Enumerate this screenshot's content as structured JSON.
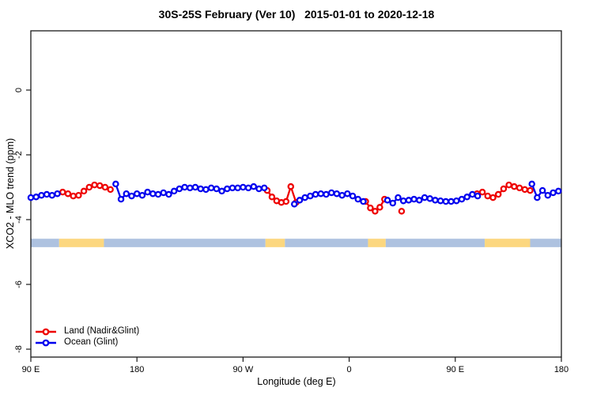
{
  "title": "30S-25S February (Ver 10)   2015-01-01 to 2020-12-18",
  "legend": {
    "land_label": "Land (Nadir&Glint)",
    "ocean_label": "Ocean (Glint)"
  },
  "colors": {
    "land": "#ee0000",
    "ocean": "#0000ee",
    "band_ocean": "#aec2e0",
    "band_land": "#fcd77f",
    "axis": "#1a1a1a"
  },
  "chart_data": {
    "type": "line",
    "title": "30S-25S February (Ver 10)   2015-01-01 to 2020-12-18",
    "xlabel": "Longitude (deg E)",
    "ylabel": "XCO2 - MLO trend (ppm)",
    "x_axis": {
      "note": "longitude axis starts at 90E and wraps eastward to 180; stored as continuous degrees 90..540",
      "domain_deg": [
        90,
        540
      ],
      "ticks": [
        {
          "deg": 90,
          "label": "90 E"
        },
        {
          "deg": 180,
          "label": "180"
        },
        {
          "deg": 270,
          "label": "90 W"
        },
        {
          "deg": 360,
          "label": "0"
        },
        {
          "deg": 450,
          "label": "90 E"
        },
        {
          "deg": 540,
          "label": "180"
        }
      ]
    },
    "y_axis": {
      "ylim": [
        -8.25,
        1.83
      ],
      "ticks": [
        {
          "v": 0,
          "label": "0"
        },
        {
          "v": -2,
          "label": "-2"
        },
        {
          "v": -4,
          "label": "-4"
        },
        {
          "v": -6,
          "label": "-6"
        },
        {
          "v": -8,
          "label": "-8"
        }
      ]
    },
    "grid": false,
    "legend_position": "bottom-left-inside",
    "surface_band": {
      "value_top": -4.59,
      "value_bottom": -4.85,
      "segments": [
        {
          "surface": "ocean",
          "from": 90,
          "to": 114
        },
        {
          "surface": "land",
          "from": 114,
          "to": 152
        },
        {
          "surface": "ocean",
          "from": 152,
          "to": 289
        },
        {
          "surface": "land",
          "from": 289,
          "to": 305.5
        },
        {
          "surface": "ocean",
          "from": 305.5,
          "to": 376
        },
        {
          "surface": "land",
          "from": 376,
          "to": 391
        },
        {
          "surface": "ocean",
          "from": 391,
          "to": 475
        },
        {
          "surface": "land",
          "from": 475,
          "to": 513.5
        },
        {
          "surface": "ocean",
          "from": 513.5,
          "to": 540
        }
      ]
    },
    "series": [
      {
        "name": "Land (Nadir&Glint)",
        "color": "#ee0000",
        "runs": [
          [
            [
              117,
              -3.15
            ],
            [
              121.5,
              -3.2
            ],
            [
              126,
              -3.27
            ],
            [
              130.5,
              -3.25
            ],
            [
              135,
              -3.12
            ],
            [
              139.5,
              -3.0
            ],
            [
              144,
              -2.93
            ],
            [
              148.5,
              -2.95
            ],
            [
              153,
              -3.0
            ],
            [
              157.5,
              -3.07
            ]
          ],
          [
            [
              290.5,
              -3.1
            ],
            [
              294.5,
              -3.3
            ],
            [
              298.5,
              -3.42
            ],
            [
              302.5,
              -3.47
            ],
            [
              306.5,
              -3.44
            ],
            [
              310.5,
              -2.98
            ],
            [
              315,
              -3.47
            ]
          ],
          [
            [
              374,
              -3.44
            ],
            [
              378,
              -3.64
            ],
            [
              382,
              -3.74
            ],
            [
              386,
              -3.62
            ],
            [
              390,
              -3.37
            ]
          ],
          [
            [
              404.5,
              -3.74
            ]
          ],
          [
            [
              468.5,
              -3.2
            ],
            [
              473,
              -3.15
            ],
            [
              477.5,
              -3.27
            ],
            [
              482,
              -3.32
            ],
            [
              486.5,
              -3.22
            ],
            [
              491,
              -3.05
            ],
            [
              495.5,
              -2.93
            ],
            [
              500,
              -2.98
            ],
            [
              504.5,
              -3.02
            ],
            [
              509,
              -3.07
            ],
            [
              513.5,
              -3.1
            ]
          ]
        ]
      },
      {
        "name": "Ocean (Glint)",
        "color": "#0000ee",
        "runs": [
          [
            [
              90,
              -3.32
            ],
            [
              94.5,
              -3.3
            ],
            [
              99,
              -3.25
            ],
            [
              103.5,
              -3.22
            ],
            [
              108,
              -3.25
            ],
            [
              112.5,
              -3.2
            ]
          ],
          [
            [
              162,
              -2.9
            ],
            [
              166.5,
              -3.37
            ],
            [
              171,
              -3.2
            ],
            [
              175.5,
              -3.27
            ],
            [
              180,
              -3.2
            ],
            [
              184.5,
              -3.25
            ],
            [
              189,
              -3.15
            ],
            [
              193.5,
              -3.2
            ],
            [
              198,
              -3.22
            ],
            [
              202.5,
              -3.17
            ],
            [
              207,
              -3.22
            ],
            [
              211.5,
              -3.12
            ],
            [
              216,
              -3.05
            ],
            [
              220.5,
              -3.0
            ],
            [
              225,
              -3.02
            ],
            [
              229.5,
              -3.0
            ],
            [
              234,
              -3.05
            ],
            [
              238.5,
              -3.07
            ],
            [
              243,
              -3.02
            ],
            [
              247.5,
              -3.05
            ],
            [
              252,
              -3.12
            ],
            [
              256.5,
              -3.05
            ],
            [
              261,
              -3.02
            ],
            [
              265.5,
              -3.02
            ],
            [
              270,
              -3.0
            ],
            [
              274.5,
              -3.02
            ],
            [
              279,
              -2.98
            ],
            [
              283.5,
              -3.05
            ],
            [
              288,
              -3.02
            ]
          ],
          [
            [
              313.5,
              -3.52
            ],
            [
              318,
              -3.4
            ],
            [
              322.5,
              -3.32
            ],
            [
              327,
              -3.27
            ],
            [
              331.5,
              -3.22
            ],
            [
              336,
              -3.2
            ],
            [
              340.5,
              -3.22
            ],
            [
              345,
              -3.17
            ],
            [
              349.5,
              -3.2
            ],
            [
              354,
              -3.25
            ],
            [
              358.5,
              -3.2
            ],
            [
              363,
              -3.27
            ],
            [
              367.5,
              -3.37
            ],
            [
              372,
              -3.44
            ]
          ],
          [
            [
              392.5,
              -3.4
            ],
            [
              397,
              -3.49
            ],
            [
              401.5,
              -3.32
            ],
            [
              406,
              -3.42
            ],
            [
              410.5,
              -3.4
            ],
            [
              415,
              -3.37
            ],
            [
              419.5,
              -3.4
            ],
            [
              424,
              -3.32
            ],
            [
              428.5,
              -3.35
            ],
            [
              433,
              -3.4
            ],
            [
              437.5,
              -3.42
            ],
            [
              442,
              -3.44
            ],
            [
              446.5,
              -3.44
            ],
            [
              451,
              -3.42
            ],
            [
              455.5,
              -3.37
            ],
            [
              460,
              -3.3
            ],
            [
              464.5,
              -3.22
            ],
            [
              469,
              -3.27
            ]
          ],
          [
            [
              515,
              -2.9
            ],
            [
              519.5,
              -3.32
            ],
            [
              524,
              -3.1
            ],
            [
              528.5,
              -3.25
            ],
            [
              533,
              -3.17
            ],
            [
              537.5,
              -3.12
            ]
          ]
        ]
      }
    ]
  }
}
